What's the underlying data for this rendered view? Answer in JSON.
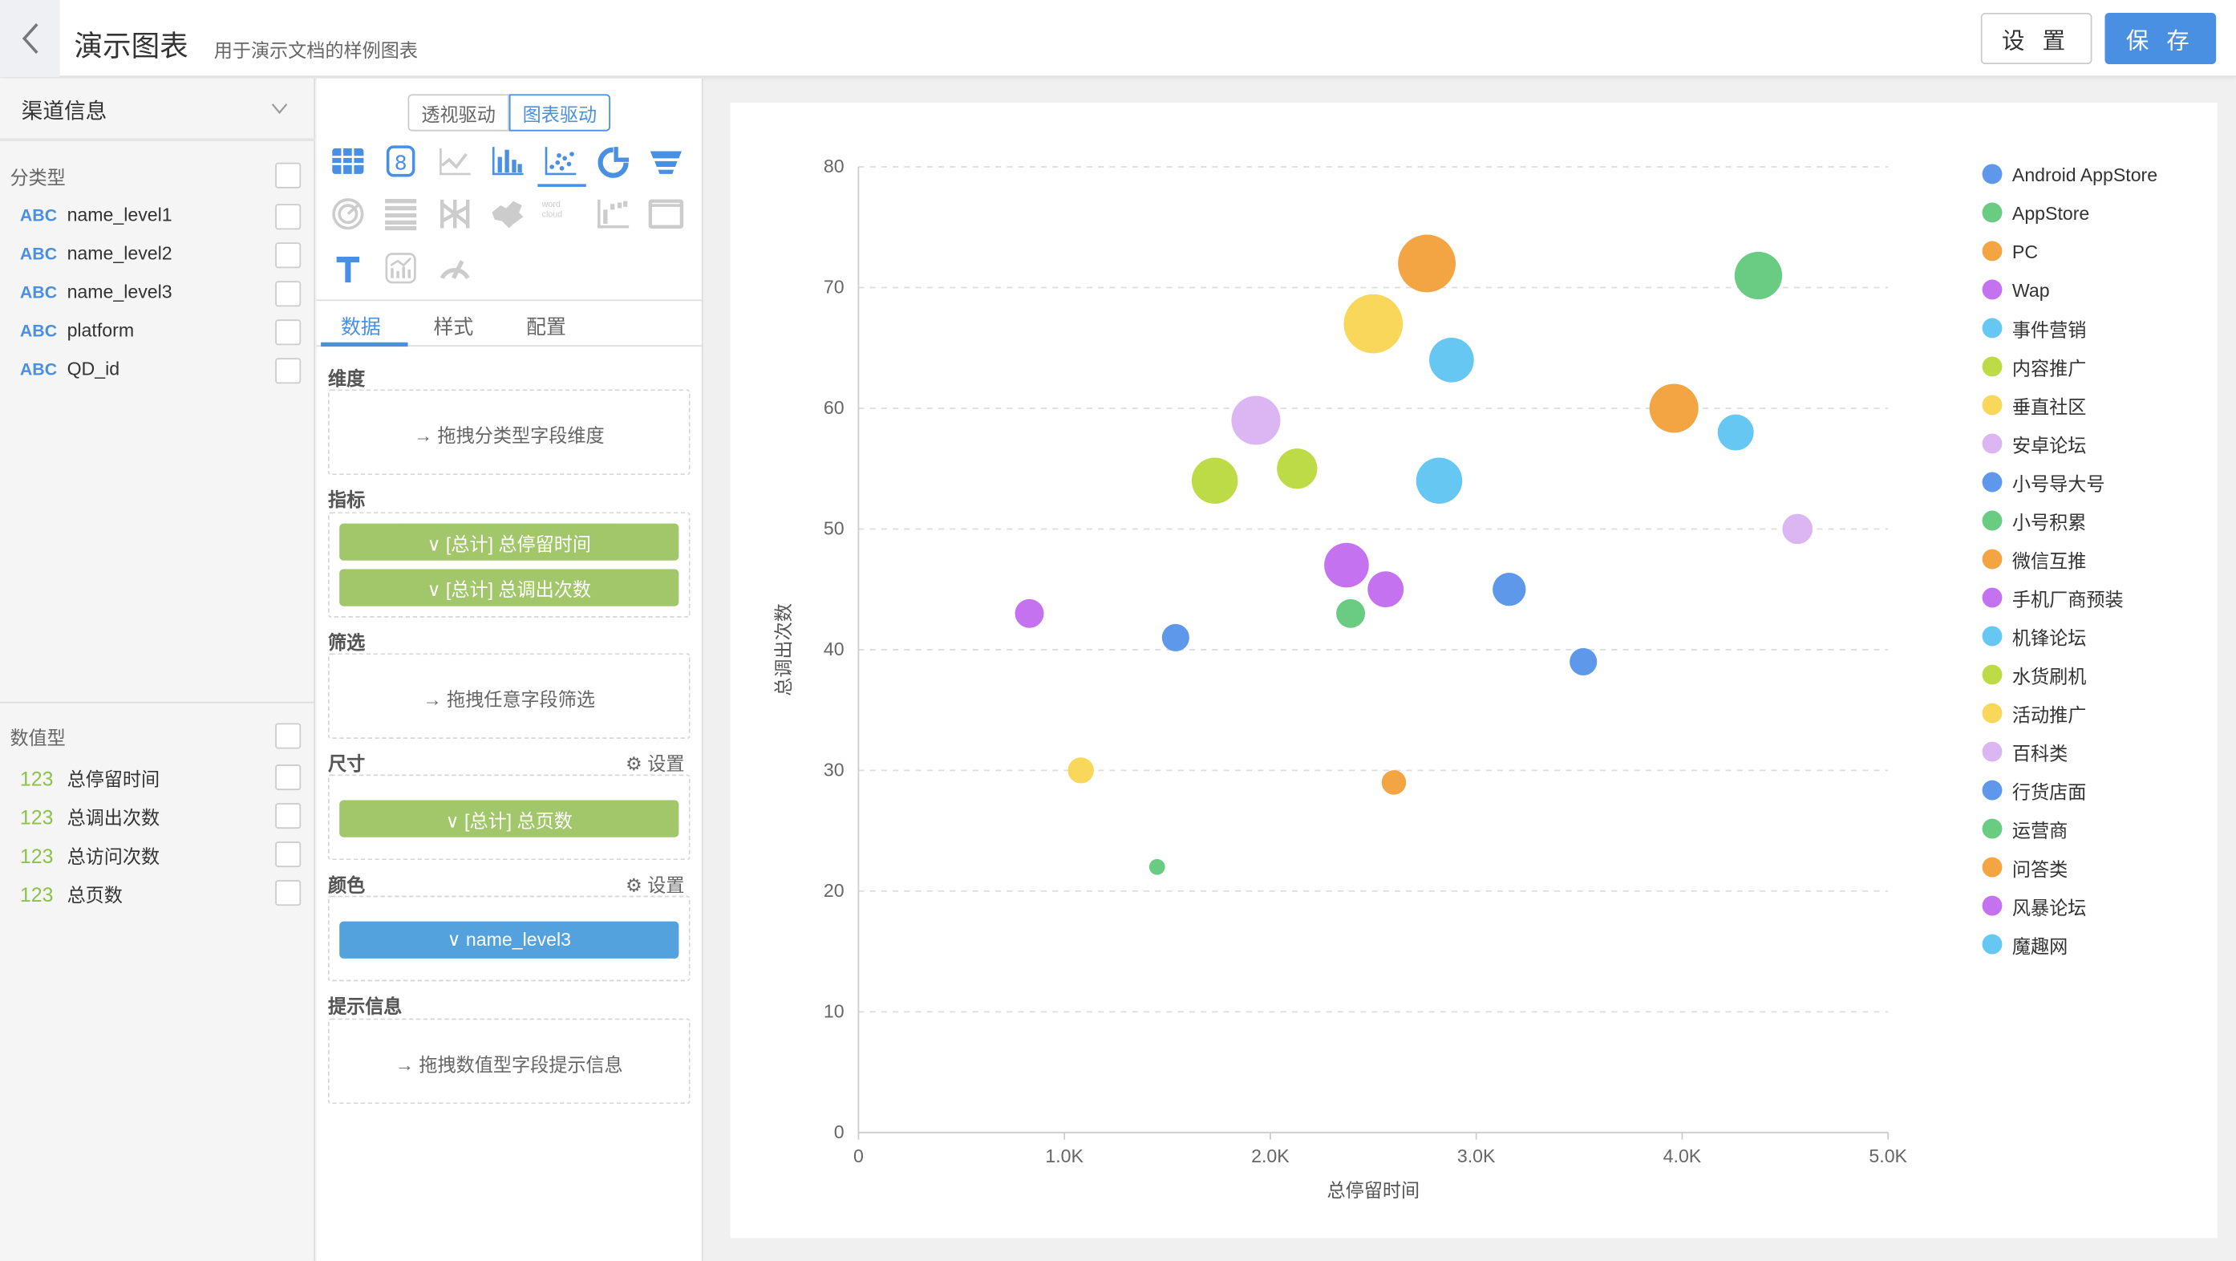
{
  "header": {
    "title": "演示图表",
    "subtitle": "用于演示文档的样例图表",
    "settings_label": "设 置",
    "save_label": "保 存"
  },
  "left": {
    "dataset": "渠道信息",
    "categorical_title": "分类型",
    "categorical_fields": [
      {
        "type": "ABC",
        "name": "name_level1"
      },
      {
        "type": "ABC",
        "name": "name_level2"
      },
      {
        "type": "ABC",
        "name": "name_level3"
      },
      {
        "type": "ABC",
        "name": "platform"
      },
      {
        "type": "ABC",
        "name": "QD_id"
      }
    ],
    "numeric_title": "数值型",
    "numeric_fields": [
      {
        "type": "123",
        "name": "总停留时间"
      },
      {
        "type": "123",
        "name": "总调出次数"
      },
      {
        "type": "123",
        "name": "总访问次数"
      },
      {
        "type": "123",
        "name": "总页数"
      }
    ]
  },
  "mid": {
    "mode_pivot": "透视驱动",
    "mode_chart": "图表驱动",
    "tabs": [
      "数据",
      "样式",
      "配置"
    ],
    "active_tab": "数据",
    "selected_chart": "scatter-icon",
    "dimension_title": "维度",
    "dimension_hint": "→ 拖拽分类型字段维度",
    "measure_title": "指标",
    "measures": [
      "∨  [总计] 总停留时间",
      "∨  [总计] 总调出次数"
    ],
    "filter_title": "筛选",
    "filter_hint": "→ 拖拽任意字段筛选",
    "size_title": "尺寸",
    "size_setting": "设置",
    "size_field": "∨  [总计] 总页数",
    "color_title": "颜色",
    "color_setting": "设置",
    "color_field": "∨  name_level3",
    "tooltip_title": "提示信息",
    "tooltip_hint": "→ 拖拽数值型字段提示信息",
    "wordcloud_text": "word cloud"
  },
  "chart_data": {
    "type": "scatter",
    "xlabel": "总停留时间",
    "ylabel": "总调出次数",
    "xlim": [
      0,
      5000
    ],
    "ylim": [
      0,
      80
    ],
    "xticks": [
      "0",
      "1.0K",
      "2.0K",
      "3.0K",
      "4.0K",
      "5.0K"
    ],
    "yticks": [
      "0",
      "10",
      "20",
      "30",
      "40",
      "50",
      "60",
      "70",
      "80"
    ],
    "grid": "horizontal dashed",
    "legend": "right",
    "series": [
      {
        "name": "Android AppStore",
        "color": "#5e98ea",
        "points": [
          {
            "x": 3160,
            "y": 45,
            "size": 23
          }
        ]
      },
      {
        "name": "AppStore",
        "color": "#6acb83",
        "points": [
          {
            "x": 4370,
            "y": 71,
            "size": 33
          }
        ]
      },
      {
        "name": "PC",
        "color": "#f3a543",
        "points": [
          {
            "x": 2760,
            "y": 72,
            "size": 40
          }
        ]
      },
      {
        "name": "Wap",
        "color": "#c572f0",
        "points": [
          {
            "x": 2370,
            "y": 47,
            "size": 31
          }
        ]
      },
      {
        "name": "事件营销",
        "color": "#66c7f3",
        "points": [
          {
            "x": 2880,
            "y": 64,
            "size": 31
          }
        ]
      },
      {
        "name": "内容推广",
        "color": "#bcdb46",
        "points": [
          {
            "x": 1730,
            "y": 54,
            "size": 32
          }
        ]
      },
      {
        "name": "垂直社区",
        "color": "#f8d75a",
        "points": [
          {
            "x": 2500,
            "y": 67,
            "size": 41
          }
        ]
      },
      {
        "name": "安卓论坛",
        "color": "#dcb6f3",
        "points": [
          {
            "x": 1930,
            "y": 59,
            "size": 34
          }
        ]
      },
      {
        "name": "小号导大号",
        "color": "#5e98ea",
        "points": [
          {
            "x": 1540,
            "y": 41,
            "size": 19
          }
        ]
      },
      {
        "name": "小号积累",
        "color": "#6acb83",
        "points": [
          {
            "x": 2390,
            "y": 43,
            "size": 20
          }
        ]
      },
      {
        "name": "微信互推",
        "color": "#f3a543",
        "points": [
          {
            "x": 3960,
            "y": 60,
            "size": 34
          }
        ]
      },
      {
        "name": "手机厂商预装",
        "color": "#c572f0",
        "points": [
          {
            "x": 2560,
            "y": 45,
            "size": 25
          }
        ]
      },
      {
        "name": "机锋论坛",
        "color": "#66c7f3",
        "points": [
          {
            "x": 2820,
            "y": 54,
            "size": 32
          }
        ]
      },
      {
        "name": "水货刷机",
        "color": "#bcdb46",
        "points": [
          {
            "x": 2130,
            "y": 55,
            "size": 28
          }
        ]
      },
      {
        "name": "活动推广",
        "color": "#f8d75a",
        "points": [
          {
            "x": 1080,
            "y": 30,
            "size": 18
          }
        ]
      },
      {
        "name": "百科类",
        "color": "#dcb6f3",
        "points": [
          {
            "x": 4560,
            "y": 50,
            "size": 21
          }
        ]
      },
      {
        "name": "行货店面",
        "color": "#5e98ea",
        "points": [
          {
            "x": 3520,
            "y": 39,
            "size": 19
          }
        ]
      },
      {
        "name": "运营商",
        "color": "#6acb83",
        "points": [
          {
            "x": 1450,
            "y": 22,
            "size": 11
          }
        ]
      },
      {
        "name": "问答类",
        "color": "#f3a543",
        "points": [
          {
            "x": 2600,
            "y": 29,
            "size": 17
          }
        ]
      },
      {
        "name": "风暴论坛",
        "color": "#c572f0",
        "points": [
          {
            "x": 830,
            "y": 43,
            "size": 20
          }
        ]
      },
      {
        "name": "魔趣网",
        "color": "#66c7f3",
        "points": [
          {
            "x": 4260,
            "y": 58,
            "size": 25
          }
        ]
      }
    ]
  }
}
